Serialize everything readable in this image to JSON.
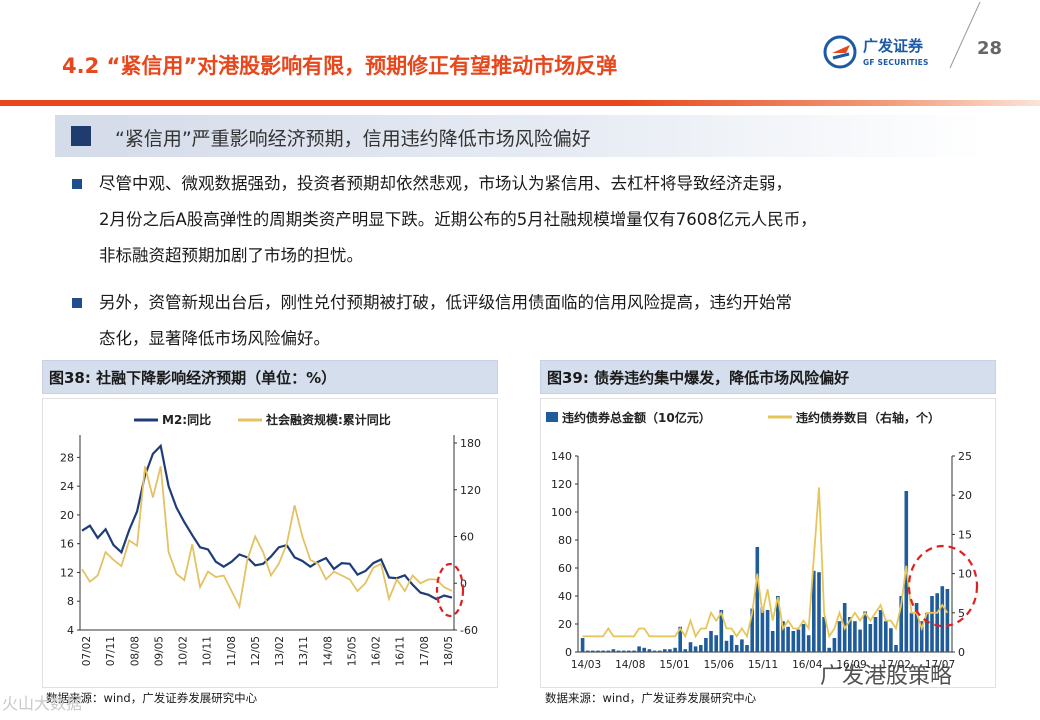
{
  "header": {
    "title": "4.2 “紧信用”对港股影响有限，预期修正有望推动市场反弹",
    "logo_cn": "广发证券",
    "logo_en": "GF SECURITIES",
    "page_number": "28"
  },
  "section": {
    "heading": "“紧信用”严重影响经济预期，信用违约降低市场风险偏好"
  },
  "bullets": [
    {
      "lines": [
        "尽管中观、微观数据强劲，投资者预期却依然悲观，市场认为紧信用、去杠杆将导致经济走弱，",
        "2月份之后A股高弹性的周期类资产明显下跌。近期公布的5月社融规模增量仅有7608亿元人民币，",
        "非标融资超预期加剧了市场的担忧。"
      ]
    },
    {
      "lines": [
        "另外，资管新规出台后，刚性兑付预期被打破，低评级信用债面临的信用风险提高，违约开始常",
        "态化，显著降低市场风险偏好。"
      ]
    }
  ],
  "figures": {
    "left": {
      "caption": "图38:  社融下降影响经济预期（单位：%）",
      "source": "数据来源：wind，广发证券发展研究中心"
    },
    "right": {
      "caption": "图39:  债券违约集中爆发，降低市场风险偏好",
      "source": "数据来源：wind，广发证券发展研究中心"
    }
  },
  "watermark": {
    "text": "广发港股策略",
    "left_text": "火山大数据"
  },
  "chart_data": [
    {
      "type": "line",
      "legend_position": "top",
      "x_ticks": [
        "07/02",
        "07/11",
        "08/08",
        "09/05",
        "10/02",
        "10/11",
        "11/08",
        "12/05",
        "13/02",
        "13/11",
        "14/08",
        "15/05",
        "16/02",
        "16/11",
        "17/08",
        "18/05"
      ],
      "y_left": {
        "ticks": [
          4,
          8,
          12,
          16,
          20,
          24,
          28
        ],
        "range": [
          4,
          30
        ]
      },
      "y_right": {
        "ticks": [
          -60,
          0,
          60,
          120,
          180
        ],
        "range": [
          -60,
          180
        ]
      },
      "series": [
        {
          "name": "M2:同比",
          "color": "#1f3c7a",
          "axis": "left",
          "values": [
            17.8,
            18.5,
            16.8,
            18.0,
            15.8,
            14.8,
            17.9,
            20.5,
            25.5,
            28.5,
            29.6,
            24.0,
            21.0,
            19.0,
            17.2,
            15.5,
            15.2,
            13.5,
            12.8,
            13.5,
            14.5,
            14.1,
            13.0,
            13.2,
            14.2,
            15.5,
            15.8,
            14.1,
            13.6,
            12.8,
            13.5,
            14.0,
            12.5,
            13.3,
            13.2,
            11.7,
            12.2,
            13.3,
            13.8,
            11.3,
            11.2,
            11.6,
            10.3,
            9.2,
            8.9,
            8.3,
            8.8,
            8.5
          ]
        },
        {
          "name": "社会融资规模:累计同比",
          "color": "#e3c264",
          "axis": "right",
          "values": [
            18,
            2,
            10,
            40,
            30,
            22,
            55,
            48,
            150,
            110,
            150,
            40,
            12,
            4,
            50,
            -5,
            15,
            8,
            10,
            -10,
            -30,
            30,
            60,
            40,
            10,
            25,
            50,
            100,
            60,
            30,
            25,
            5,
            15,
            10,
            5,
            -10,
            0,
            20,
            25,
            -20,
            5,
            -10,
            10,
            0,
            5,
            5,
            -5,
            -10
          ]
        }
      ]
    },
    {
      "type": "bar",
      "legend_position": "top",
      "x_ticks": [
        "14/03",
        "14/08",
        "15/01",
        "15/06",
        "15/11",
        "16/04",
        "16/09",
        "17/02",
        "17/07"
      ],
      "y_left": {
        "ticks": [
          0,
          20,
          40,
          60,
          80,
          100,
          120,
          140
        ],
        "range": [
          0,
          140
        ]
      },
      "y_right": {
        "ticks": [
          0,
          5,
          10,
          15,
          20,
          25
        ],
        "range": [
          0,
          25
        ]
      },
      "series": [
        {
          "name": "违约债券总金额（10亿元）",
          "color": "#1f5c99",
          "axis": "left",
          "values": [
            10,
            1,
            1,
            1,
            1,
            1,
            2,
            1,
            1,
            1,
            1,
            4,
            3,
            2,
            1,
            1,
            2,
            2,
            3,
            18,
            2,
            7,
            4,
            5,
            10,
            15,
            12,
            30,
            8,
            12,
            5,
            9,
            5,
            31,
            75,
            32,
            30,
            15,
            40,
            22,
            18,
            15,
            16,
            20,
            12,
            58,
            57,
            25,
            3,
            10,
            22,
            35,
            25,
            22,
            16,
            29,
            20,
            25,
            30,
            22,
            17,
            5,
            40,
            115,
            28,
            35,
            22,
            28,
            40,
            42,
            47,
            45
          ]
        },
        {
          "name": "违约债券数目（右轴，个）",
          "color": "#e6c65c",
          "axis": "right",
          "values": [
            2,
            2,
            2,
            2,
            2,
            3,
            2,
            2,
            2,
            2,
            2,
            3,
            3,
            2,
            2,
            2,
            2,
            2,
            2,
            3,
            2,
            4,
            2,
            3,
            3,
            5,
            4,
            5,
            3,
            3,
            2,
            3,
            2,
            5,
            10,
            5,
            8,
            4,
            7,
            3,
            4,
            3,
            3,
            4,
            3,
            12,
            21,
            5,
            2,
            3,
            5,
            3,
            4,
            5,
            4,
            5,
            4,
            5,
            6,
            4,
            4,
            3,
            6,
            11,
            5,
            5,
            3,
            5,
            5,
            5,
            6,
            5
          ]
        }
      ]
    }
  ]
}
